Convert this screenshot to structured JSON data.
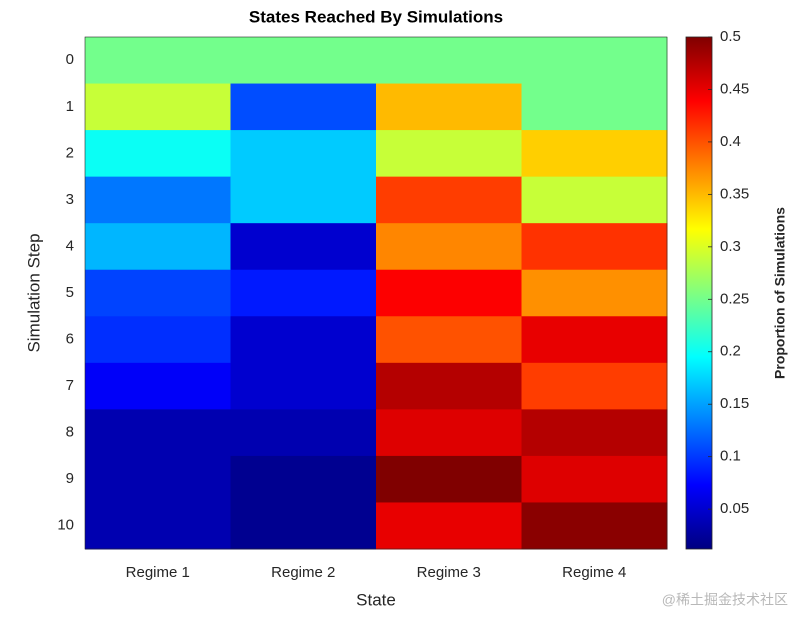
{
  "chart_data": {
    "type": "heatmap",
    "title": "States Reached By Simulations",
    "x_label": "State",
    "y_label": "Simulation Step",
    "colorbar_label": "Proportion of Simulations",
    "watermark": "@稀土掘金技术社区",
    "categories": [
      "Regime 1",
      "Regime 2",
      "Regime 3",
      "Regime 4"
    ],
    "y": [
      0,
      1,
      2,
      3,
      4,
      5,
      6,
      7,
      8,
      9,
      10
    ],
    "values": [
      [
        0.25,
        0.25,
        0.25,
        0.25
      ],
      [
        0.29,
        0.11,
        0.35,
        0.25
      ],
      [
        0.2,
        0.17,
        0.29,
        0.34
      ],
      [
        0.13,
        0.17,
        0.41,
        0.29
      ],
      [
        0.16,
        0.05,
        0.375,
        0.415
      ],
      [
        0.105,
        0.085,
        0.44,
        0.37
      ],
      [
        0.095,
        0.05,
        0.4,
        0.45
      ],
      [
        0.07,
        0.05,
        0.475,
        0.41
      ],
      [
        0.035,
        0.035,
        0.455,
        0.475
      ],
      [
        0.035,
        0.02,
        0.5,
        0.455
      ],
      [
        0.035,
        0.02,
        0.45,
        0.495
      ]
    ],
    "colormap": "jet",
    "clim": [
      0.012,
      0.5
    ],
    "cticks": [
      0.05,
      0.1,
      0.15,
      0.2,
      0.25,
      0.3,
      0.35,
      0.4,
      0.45,
      0.5
    ]
  }
}
